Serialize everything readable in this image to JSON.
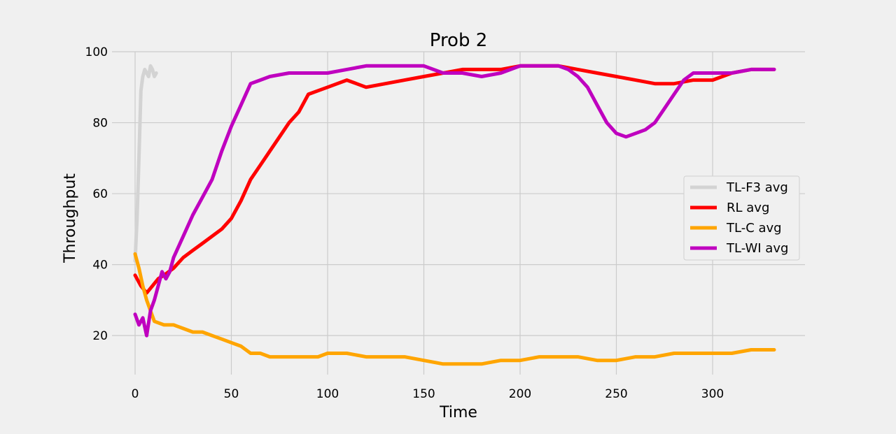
{
  "chart_data": {
    "type": "line",
    "title": "Prob 2",
    "xlabel": "Time",
    "ylabel": "Throughput",
    "xlim": [
      -12,
      348
    ],
    "ylim": [
      9,
      100
    ],
    "xticks": [
      0,
      50,
      100,
      150,
      200,
      250,
      300
    ],
    "yticks": [
      20,
      40,
      60,
      80,
      100
    ],
    "grid": true,
    "legend_position": "center-right",
    "series": [
      {
        "name": "TL-F3 avg",
        "color": "#d3d3d3",
        "x": [
          0,
          1,
          2,
          3,
          4,
          5,
          6,
          7,
          8,
          9,
          10,
          11
        ],
        "y": [
          41,
          53,
          70,
          89,
          93,
          95,
          94,
          93,
          96,
          95,
          93,
          94
        ]
      },
      {
        "name": "RL avg",
        "color": "#ff0000",
        "x": [
          0,
          3,
          6,
          9,
          12,
          15,
          20,
          25,
          30,
          35,
          40,
          45,
          50,
          55,
          60,
          65,
          70,
          75,
          80,
          85,
          90,
          95,
          100,
          105,
          110,
          115,
          120,
          130,
          140,
          150,
          160,
          170,
          180,
          190,
          200,
          210,
          220,
          230,
          240,
          250,
          260,
          270,
          280,
          290,
          300,
          310,
          320,
          332
        ],
        "y": [
          37,
          34,
          32,
          34,
          36,
          37,
          39,
          42,
          44,
          46,
          48,
          50,
          53,
          58,
          64,
          68,
          72,
          76,
          80,
          83,
          88,
          89,
          90,
          91,
          92,
          91,
          90,
          91,
          92,
          93,
          94,
          95,
          95,
          95,
          96,
          96,
          96,
          95,
          94,
          93,
          92,
          91,
          91,
          92,
          92,
          94,
          95,
          95
        ]
      },
      {
        "name": "TL-C avg",
        "color": "#ffa500",
        "x": [
          0,
          2,
          4,
          6,
          8,
          10,
          15,
          20,
          25,
          30,
          35,
          40,
          45,
          50,
          55,
          60,
          65,
          70,
          75,
          80,
          85,
          90,
          95,
          100,
          110,
          120,
          130,
          140,
          150,
          160,
          170,
          180,
          190,
          200,
          210,
          220,
          230,
          240,
          250,
          260,
          270,
          280,
          290,
          300,
          310,
          320,
          332
        ],
        "y": [
          43,
          39,
          34,
          30,
          27,
          24,
          23,
          23,
          22,
          21,
          21,
          20,
          19,
          18,
          17,
          15,
          15,
          14,
          14,
          14,
          14,
          14,
          14,
          15,
          15,
          14,
          14,
          14,
          13,
          12,
          12,
          12,
          13,
          13,
          14,
          14,
          14,
          13,
          13,
          14,
          14,
          15,
          15,
          15,
          15,
          16,
          16
        ]
      },
      {
        "name": "TL-WI avg",
        "color": "#bf00bf",
        "x": [
          0,
          2,
          4,
          6,
          8,
          10,
          12,
          14,
          16,
          18,
          20,
          25,
          30,
          35,
          40,
          45,
          50,
          55,
          60,
          65,
          70,
          80,
          90,
          100,
          110,
          120,
          130,
          140,
          150,
          160,
          170,
          180,
          190,
          200,
          210,
          220,
          225,
          230,
          235,
          240,
          245,
          250,
          255,
          260,
          265,
          270,
          275,
          280,
          285,
          290,
          300,
          310,
          320,
          332
        ],
        "y": [
          26,
          23,
          25,
          20,
          27,
          30,
          34,
          38,
          36,
          38,
          42,
          48,
          54,
          59,
          64,
          72,
          79,
          85,
          91,
          92,
          93,
          94,
          94,
          94,
          95,
          96,
          96,
          96,
          96,
          94,
          94,
          93,
          94,
          96,
          96,
          96,
          95,
          93,
          90,
          85,
          80,
          77,
          76,
          77,
          78,
          80,
          84,
          88,
          92,
          94,
          94,
          94,
          95,
          95
        ]
      }
    ]
  }
}
